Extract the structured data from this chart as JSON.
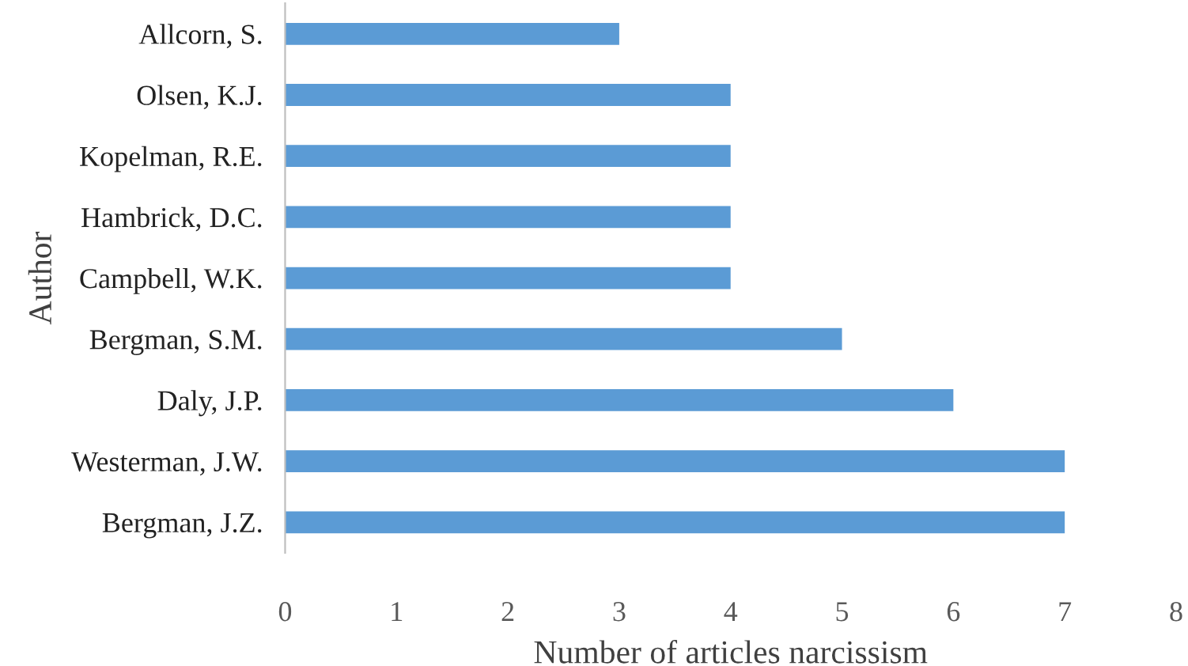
{
  "chart_data": {
    "type": "bar",
    "orientation": "horizontal",
    "xlabel": "Number of articles narcissism",
    "ylabel": "Author",
    "categories": [
      "Allcorn, S.",
      "Olsen, K.J.",
      "Kopelman, R.E.",
      "Hambrick, D.C.",
      "Campbell, W.K.",
      "Bergman, S.M.",
      "Daly, J.P.",
      "Westerman, J.W.",
      "Bergman, J.Z."
    ],
    "values": [
      3,
      4,
      4,
      4,
      4,
      5,
      6,
      7,
      7
    ],
    "color": "#5b9bd5",
    "xlim": [
      0,
      8
    ],
    "xticks": [
      0,
      1,
      2,
      3,
      4,
      5,
      6,
      7,
      8
    ],
    "grid": false,
    "legend": false
  }
}
